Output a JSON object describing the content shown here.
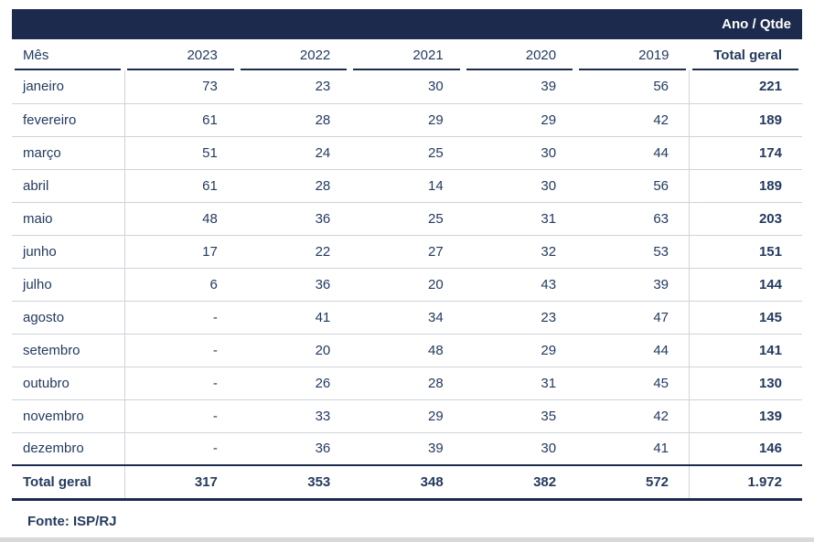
{
  "chart_data": {
    "type": "table",
    "title": "Ano / Qtde",
    "row_dimension": "Mês",
    "columns": [
      "2023",
      "2022",
      "2021",
      "2020",
      "2019",
      "Total geral"
    ],
    "rows": [
      {
        "month": "janeiro",
        "values": [
          "73",
          "23",
          "30",
          "39",
          "56"
        ],
        "total": "221"
      },
      {
        "month": "fevereiro",
        "values": [
          "61",
          "28",
          "29",
          "29",
          "42"
        ],
        "total": "189"
      },
      {
        "month": "março",
        "values": [
          "51",
          "24",
          "25",
          "30",
          "44"
        ],
        "total": "174"
      },
      {
        "month": "abril",
        "values": [
          "61",
          "28",
          "14",
          "30",
          "56"
        ],
        "total": "189"
      },
      {
        "month": "maio",
        "values": [
          "48",
          "36",
          "25",
          "31",
          "63"
        ],
        "total": "203"
      },
      {
        "month": "junho",
        "values": [
          "17",
          "22",
          "27",
          "32",
          "53"
        ],
        "total": "151"
      },
      {
        "month": "julho",
        "values": [
          "6",
          "36",
          "20",
          "43",
          "39"
        ],
        "total": "144"
      },
      {
        "month": "agosto",
        "values": [
          "-",
          "41",
          "34",
          "23",
          "47"
        ],
        "total": "145"
      },
      {
        "month": "setembro",
        "values": [
          "-",
          "20",
          "48",
          "29",
          "44"
        ],
        "total": "141"
      },
      {
        "month": "outubro",
        "values": [
          "-",
          "26",
          "28",
          "31",
          "45"
        ],
        "total": "130"
      },
      {
        "month": "novembro",
        "values": [
          "-",
          "33",
          "29",
          "35",
          "42"
        ],
        "total": "139"
      },
      {
        "month": "dezembro",
        "values": [
          "-",
          "36",
          "39",
          "30",
          "41"
        ],
        "total": "146"
      }
    ],
    "total_row": {
      "label": "Total geral",
      "values": [
        "317",
        "353",
        "348",
        "382",
        "572"
      ],
      "total": "1.972"
    }
  },
  "footer": {
    "source": "Fonte: ISP/RJ"
  },
  "colors": {
    "header_bar": "#1c2b4d",
    "text": "#243a5e",
    "grid_line": "#cfd3d9"
  }
}
